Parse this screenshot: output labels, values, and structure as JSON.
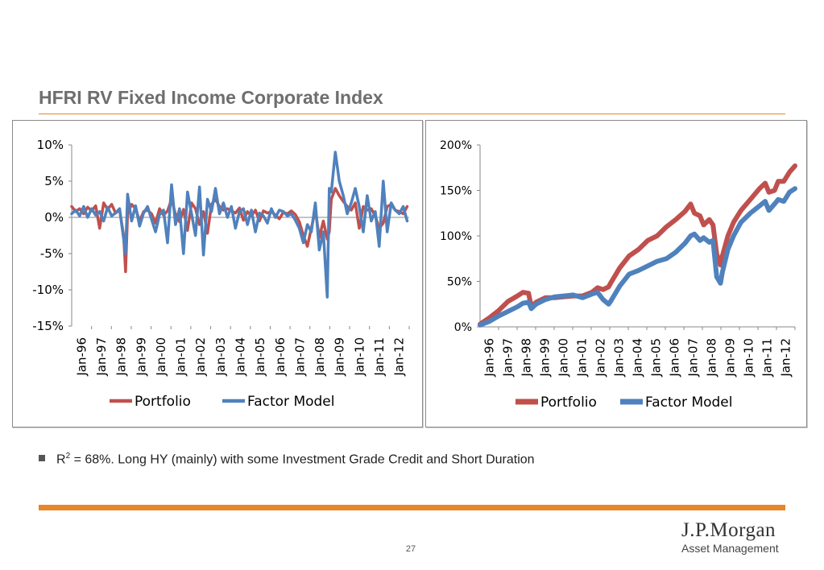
{
  "title": "HFRI RV Fixed Income Corporate Index",
  "bullet": {
    "r_label": "R",
    "r_sup": "2",
    "text": " = 68%. Long HY (mainly) with some Investment Grade Credit and Short Duration"
  },
  "page_number": "27",
  "logo": {
    "name": "J.P.Morgan",
    "subtitle": "Asset Management"
  },
  "colors": {
    "portfolio": "#c0504d",
    "factor_model": "#4f81bd",
    "accent": "#e8862a"
  },
  "chart_data": [
    {
      "type": "line",
      "ylim": [
        -15,
        10
      ],
      "yticks": [
        "10%",
        "5%",
        "0%",
        "-5%",
        "-10%",
        "-15%"
      ],
      "ytick_values": [
        10,
        5,
        0,
        -5,
        -10,
        -15
      ],
      "categories": [
        "Jan-96",
        "Jan-97",
        "Jan-98",
        "Jan-99",
        "Jan-00",
        "Jan-01",
        "Jan-02",
        "Jan-03",
        "Jan-04",
        "Jan-05",
        "Jan-06",
        "Jan-07",
        "Jan-08",
        "Jan-09",
        "Jan-10",
        "Jan-11",
        "Jan-12"
      ],
      "x_start": 1996.0,
      "x_end": 2012.9,
      "legend_position": "bottom",
      "series": [
        {
          "name": "Portfolio",
          "x": [
            1996.0,
            1996.2,
            1996.4,
            1996.6,
            1996.8,
            1997.0,
            1997.2,
            1997.4,
            1997.6,
            1997.8,
            1998.0,
            1998.2,
            1998.4,
            1998.6,
            1998.7,
            1998.8,
            1999.0,
            1999.2,
            1999.4,
            1999.6,
            1999.8,
            2000.0,
            2000.2,
            2000.4,
            2000.6,
            2000.8,
            2001.0,
            2001.2,
            2001.4,
            2001.6,
            2001.8,
            2002.0,
            2002.2,
            2002.4,
            2002.6,
            2002.8,
            2003.0,
            2003.2,
            2003.4,
            2003.6,
            2003.8,
            2004.0,
            2004.2,
            2004.4,
            2004.6,
            2004.8,
            2005.0,
            2005.2,
            2005.4,
            2005.6,
            2005.8,
            2006.0,
            2006.2,
            2006.4,
            2006.6,
            2006.8,
            2007.0,
            2007.2,
            2007.4,
            2007.6,
            2007.8,
            2008.0,
            2008.2,
            2008.4,
            2008.6,
            2008.8,
            2008.9,
            2009.0,
            2009.2,
            2009.4,
            2009.6,
            2009.8,
            2010.0,
            2010.2,
            2010.4,
            2010.6,
            2010.8,
            2011.0,
            2011.2,
            2011.4,
            2011.6,
            2011.8,
            2012.0,
            2012.2,
            2012.4,
            2012.6,
            2012.8
          ],
          "values": [
            1.5,
            0.8,
            1.2,
            0.5,
            1.4,
            0.9,
            1.6,
            -1.5,
            2.0,
            1.1,
            1.8,
            0.6,
            1.0,
            -2.5,
            -7.5,
            0.5,
            1.8,
            1.2,
            -0.5,
            0.8,
            1.0,
            0.5,
            -0.8,
            1.2,
            0.3,
            0.9,
            2.5,
            0.4,
            -0.6,
            1.1,
            -1.8,
            2.0,
            1.2,
            -1.0,
            0.8,
            -2.2,
            1.8,
            2.5,
            1.5,
            1.0,
            1.2,
            0.9,
            0.6,
            1.3,
            -0.4,
            0.8,
            0.2,
            1.0,
            -0.5,
            0.9,
            0.6,
            0.8,
            0.3,
            -0.2,
            0.7,
            0.5,
            0.9,
            0.4,
            -0.6,
            -2.5,
            -4.0,
            -1.5,
            1.0,
            -2.8,
            -0.5,
            -3.0,
            -2.0,
            2.5,
            4.0,
            3.0,
            2.2,
            1.5,
            1.0,
            2.0,
            -1.5,
            1.5,
            1.0,
            1.2,
            0.2,
            -1.5,
            -0.8,
            1.5,
            1.8,
            1.0,
            0.8,
            0.5,
            1.5
          ]
        },
        {
          "name": "Factor Model",
          "x": [
            1996.0,
            1996.2,
            1996.4,
            1996.6,
            1996.8,
            1997.0,
            1997.2,
            1997.4,
            1997.6,
            1997.8,
            1998.0,
            1998.2,
            1998.4,
            1998.6,
            1998.7,
            1998.8,
            1999.0,
            1999.2,
            1999.4,
            1999.6,
            1999.8,
            2000.0,
            2000.2,
            2000.4,
            2000.6,
            2000.8,
            2001.0,
            2001.2,
            2001.4,
            2001.6,
            2001.8,
            2002.0,
            2002.2,
            2002.4,
            2002.6,
            2002.8,
            2003.0,
            2003.2,
            2003.4,
            2003.6,
            2003.8,
            2004.0,
            2004.2,
            2004.4,
            2004.6,
            2004.8,
            2005.0,
            2005.2,
            2005.4,
            2005.6,
            2005.8,
            2006.0,
            2006.2,
            2006.4,
            2006.6,
            2006.8,
            2007.0,
            2007.2,
            2007.4,
            2007.6,
            2007.8,
            2008.0,
            2008.2,
            2008.4,
            2008.6,
            2008.8,
            2008.9,
            2009.0,
            2009.2,
            2009.4,
            2009.6,
            2009.8,
            2010.0,
            2010.2,
            2010.4,
            2010.6,
            2010.8,
            2011.0,
            2011.2,
            2011.4,
            2011.6,
            2011.8,
            2012.0,
            2012.2,
            2012.4,
            2012.6,
            2012.8
          ],
          "values": [
            0.5,
            1.0,
            0.2,
            1.5,
            0.0,
            1.2,
            0.3,
            0.8,
            -0.5,
            1.4,
            0.2,
            0.6,
            1.2,
            -3.0,
            -5.0,
            3.2,
            -0.5,
            1.6,
            -1.2,
            0.6,
            1.5,
            -0.3,
            -2.0,
            0.4,
            1.0,
            -3.5,
            4.5,
            -1.0,
            1.2,
            -5.0,
            3.5,
            0.5,
            -2.5,
            4.2,
            -5.2,
            2.5,
            0.8,
            4.0,
            0.5,
            2.0,
            0.0,
            1.5,
            -1.5,
            0.8,
            1.2,
            -1.0,
            1.0,
            -2.0,
            0.6,
            0.2,
            -0.8,
            1.2,
            0.0,
            1.0,
            0.8,
            0.2,
            0.5,
            -0.4,
            -1.5,
            -3.5,
            -1.0,
            -2.0,
            2.0,
            -4.5,
            -2.0,
            -11.0,
            4.0,
            3.5,
            9.0,
            5.0,
            3.0,
            0.5,
            2.0,
            4.0,
            1.5,
            -2.0,
            3.0,
            -0.5,
            0.8,
            -4.0,
            5.0,
            -2.0,
            2.0,
            1.0,
            0.5,
            1.5,
            -0.5
          ]
        }
      ]
    },
    {
      "type": "line",
      "ylim": [
        0,
        200
      ],
      "yticks": [
        "200%",
        "150%",
        "100%",
        "50%",
        "0%"
      ],
      "ytick_values": [
        200,
        150,
        100,
        50,
        0
      ],
      "categories": [
        "Jan-96",
        "Jan-97",
        "Jan-98",
        "Jan-99",
        "Jan-00",
        "Jan-01",
        "Jan-02",
        "Jan-03",
        "Jan-04",
        "Jan-05",
        "Jan-06",
        "Jan-07",
        "Jan-08",
        "Jan-09",
        "Jan-10",
        "Jan-11",
        "Jan-12"
      ],
      "x_start": 1996.0,
      "x_end": 2012.9,
      "legend_position": "bottom",
      "series": [
        {
          "name": "Portfolio",
          "x": [
            1996.0,
            1996.5,
            1997.0,
            1997.5,
            1998.0,
            1998.3,
            1998.6,
            1998.75,
            1999.0,
            1999.5,
            2000.0,
            2000.5,
            2001.0,
            2001.5,
            2002.0,
            2002.3,
            2002.6,
            2002.9,
            2003.0,
            2003.5,
            2004.0,
            2004.5,
            2005.0,
            2005.5,
            2006.0,
            2006.5,
            2007.0,
            2007.3,
            2007.5,
            2007.8,
            2008.0,
            2008.3,
            2008.5,
            2008.7,
            2008.9,
            2009.0,
            2009.3,
            2009.6,
            2010.0,
            2010.5,
            2011.0,
            2011.3,
            2011.5,
            2011.8,
            2012.0,
            2012.3,
            2012.6,
            2012.9
          ],
          "values": [
            3,
            10,
            18,
            28,
            34,
            38,
            37,
            22,
            27,
            32,
            32,
            33,
            34,
            34,
            38,
            43,
            41,
            44,
            48,
            65,
            78,
            85,
            95,
            100,
            110,
            118,
            127,
            135,
            125,
            122,
            112,
            118,
            112,
            80,
            68,
            78,
            100,
            115,
            128,
            140,
            152,
            158,
            148,
            150,
            160,
            160,
            170,
            177
          ]
        },
        {
          "name": "Factor Model",
          "x": [
            1996.0,
            1996.5,
            1997.0,
            1997.5,
            1998.0,
            1998.3,
            1998.6,
            1998.75,
            1999.0,
            1999.5,
            2000.0,
            2000.5,
            2001.0,
            2001.5,
            2002.0,
            2002.3,
            2002.6,
            2002.9,
            2003.0,
            2003.5,
            2004.0,
            2004.5,
            2005.0,
            2005.5,
            2006.0,
            2006.5,
            2007.0,
            2007.3,
            2007.5,
            2007.8,
            2008.0,
            2008.3,
            2008.5,
            2008.7,
            2008.9,
            2009.0,
            2009.3,
            2009.6,
            2010.0,
            2010.5,
            2011.0,
            2011.3,
            2011.5,
            2011.8,
            2012.0,
            2012.3,
            2012.6,
            2012.9
          ],
          "values": [
            2,
            6,
            12,
            17,
            22,
            26,
            27,
            20,
            25,
            30,
            33,
            34,
            35,
            32,
            36,
            38,
            30,
            25,
            28,
            45,
            58,
            62,
            67,
            72,
            75,
            82,
            92,
            100,
            102,
            95,
            98,
            93,
            95,
            55,
            48,
            60,
            85,
            100,
            115,
            125,
            133,
            138,
            128,
            135,
            140,
            138,
            148,
            152
          ]
        }
      ]
    }
  ]
}
